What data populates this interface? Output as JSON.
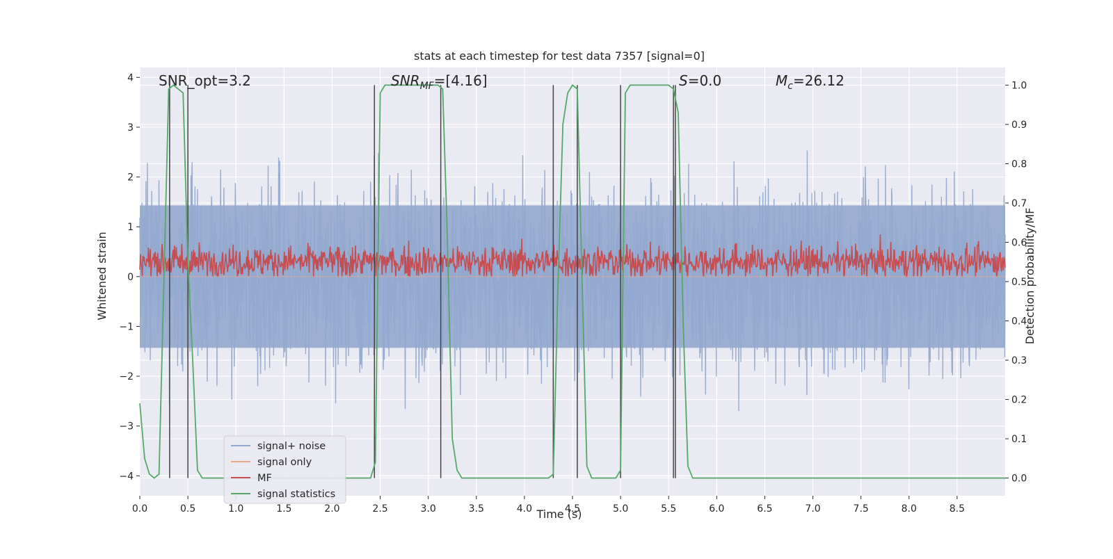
{
  "chart_data": {
    "type": "line",
    "title": "stats at each timestep for test data 7357 [signal=0]",
    "xlabel": "Time (s)",
    "ylabel": "Whitened strain",
    "y2label": "Detection probability/MF",
    "xlim": [
      0.0,
      9.0
    ],
    "ylim": [
      -4.4,
      4.2
    ],
    "y2lim": [
      -0.045,
      1.045
    ],
    "xticks": [
      "0.0",
      "0.5",
      "1.0",
      "1.5",
      "2.0",
      "2.5",
      "3.0",
      "3.5",
      "4.0",
      "4.5",
      "5.0",
      "5.5",
      "6.0",
      "6.5",
      "7.0",
      "7.5",
      "8.0",
      "8.5"
    ],
    "xtick_values": [
      0.0,
      0.5,
      1.0,
      1.5,
      2.0,
      2.5,
      3.0,
      3.5,
      4.0,
      4.5,
      5.0,
      5.5,
      6.0,
      6.5,
      7.0,
      7.5,
      8.0,
      8.5
    ],
    "yticks": [
      "−4",
      "−3",
      "−2",
      "−1",
      "0",
      "1",
      "2",
      "3",
      "4"
    ],
    "ytick_values": [
      -4,
      -3,
      -2,
      -1,
      0,
      1,
      2,
      3,
      4
    ],
    "y2ticks": [
      "0.0",
      "0.1",
      "0.2",
      "0.3",
      "0.4",
      "0.5",
      "0.6",
      "0.7",
      "0.8",
      "0.9",
      "1.0"
    ],
    "y2tick_values": [
      0.0,
      0.1,
      0.2,
      0.3,
      0.4,
      0.5,
      0.6,
      0.7,
      0.8,
      0.9,
      1.0
    ],
    "annotations": {
      "snr_opt": "SNR_opt=3.2",
      "snr_mf_main": "SNR",
      "snr_mf_sub": "MF",
      "snr_mf_val": "=[4.16]",
      "s_main": "S",
      "s_val": "=0.0",
      "mc_main": "M",
      "mc_sub": "c",
      "mc_val": "=26.12"
    },
    "vertical_lines": [
      0.31,
      0.5,
      2.44,
      3.13,
      4.3,
      4.55,
      5.0,
      5.55,
      5.57
    ],
    "noise_envelope": {
      "lower": -2.2,
      "upper": 2.2,
      "peak_abs": 3.8
    },
    "series": [
      {
        "name": "signal+ noise",
        "color": "#94a9ce",
        "axis": "left",
        "description_values": {
          "mean": 0.0,
          "std": 0.9
        }
      },
      {
        "name": "signal only",
        "color": "#eea584",
        "axis": "left",
        "values_constant": 0.0
      },
      {
        "name": "MF",
        "color": "#c44e52",
        "axis": "left",
        "description_values": {
          "mean": 0.3,
          "range": [
            0.0,
            1.0
          ]
        }
      },
      {
        "name": "signal statistics",
        "color": "#55a868",
        "axis": "right",
        "x": [
          0.0,
          0.05,
          0.1,
          0.15,
          0.2,
          0.25,
          0.3,
          0.35,
          0.4,
          0.45,
          0.5,
          0.55,
          0.6,
          0.65,
          0.7,
          0.8,
          1.0,
          1.5,
          2.0,
          2.3,
          2.4,
          2.45,
          2.5,
          2.55,
          2.6,
          2.8,
          3.0,
          3.1,
          3.15,
          3.2,
          3.25,
          3.3,
          3.35,
          3.5,
          4.0,
          4.25,
          4.3,
          4.35,
          4.4,
          4.45,
          4.5,
          4.55,
          4.6,
          4.65,
          4.7,
          4.8,
          4.95,
          5.0,
          5.05,
          5.1,
          5.2,
          5.5,
          5.55,
          5.6,
          5.65,
          5.7,
          5.75,
          5.8,
          6.0,
          7.0,
          8.0,
          9.0
        ],
        "values": [
          0.19,
          0.05,
          0.01,
          0.0,
          0.01,
          0.5,
          0.99,
          1.0,
          0.99,
          0.98,
          0.55,
          0.3,
          0.02,
          0.0,
          0.0,
          0.0,
          0.0,
          0.0,
          0.0,
          0.0,
          0.0,
          0.04,
          0.98,
          1.0,
          1.0,
          1.0,
          1.0,
          1.0,
          0.99,
          0.6,
          0.1,
          0.02,
          0.0,
          0.0,
          0.0,
          0.0,
          0.01,
          0.5,
          0.9,
          0.98,
          1.0,
          0.99,
          0.5,
          0.03,
          0.0,
          0.0,
          0.0,
          0.02,
          0.98,
          1.0,
          1.0,
          1.0,
          0.99,
          0.93,
          0.4,
          0.03,
          0.0,
          0.0,
          0.0,
          0.0,
          0.0,
          0.0
        ]
      }
    ],
    "legend": {
      "position": "lower-left",
      "entries": [
        {
          "label": "signal+ noise",
          "color": "#94a9ce"
        },
        {
          "label": "signal only",
          "color": "#eea584"
        },
        {
          "label": "MF",
          "color": "#c44e52"
        },
        {
          "label": "signal statistics",
          "color": "#55a868"
        }
      ]
    },
    "grid": true,
    "colors": {
      "face": "#eaeaf2",
      "grid": "#ffffff",
      "vline": "#444444",
      "text": "#262626"
    }
  }
}
